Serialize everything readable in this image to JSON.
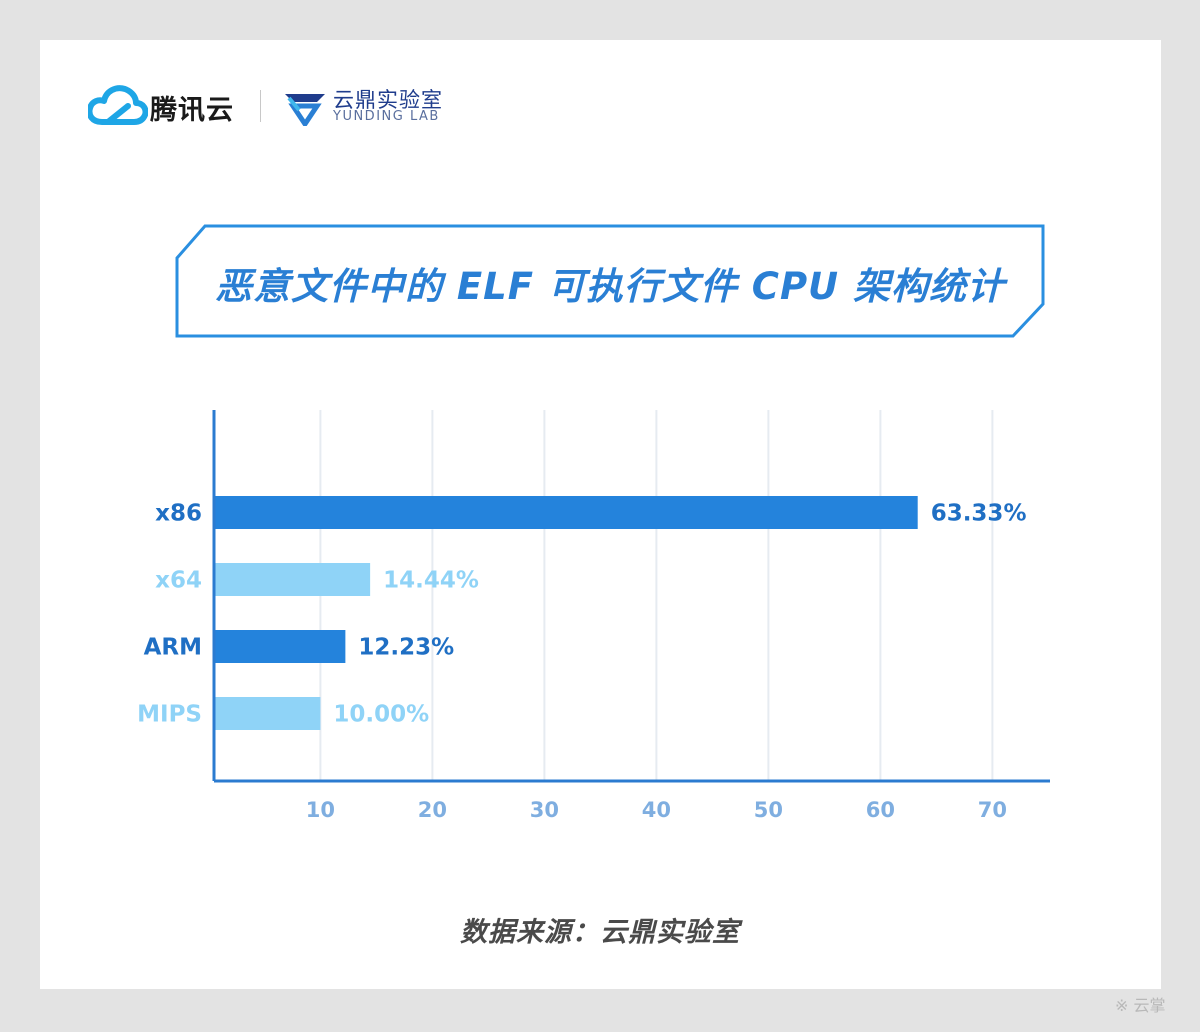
{
  "header": {
    "brand_name": "腾讯云",
    "lab_name_cn": "云鼎实验室",
    "lab_name_en": "YUNDING LAB"
  },
  "source_text": "数据来源：云鼎实验室",
  "watermark": "※ 云掌",
  "colors": {
    "dark_bar": "#2483dc",
    "light_bar": "#8fd3f7",
    "dark_label": "#1f6fc4",
    "light_label": "#8fd3f7",
    "axis": "#2b7bd0",
    "grid": "#e6ebf1"
  },
  "chart_data": {
    "type": "bar",
    "orientation": "horizontal",
    "title": "恶意文件中的 ELF 可执行文件 CPU 架构统计",
    "xlabel": "",
    "ylabel": "",
    "categories": [
      "x86",
      "x64",
      "ARM",
      "MIPS"
    ],
    "values": [
      63.33,
      14.44,
      12.23,
      10.0
    ],
    "value_labels": [
      "63.33%",
      "14.44%",
      "12.23%",
      "10.00%"
    ],
    "styles": [
      "dark",
      "light",
      "dark",
      "light"
    ],
    "xlim": [
      0.5,
      75
    ],
    "xticks": [
      10,
      20,
      30,
      40,
      50,
      60,
      70
    ],
    "grid": true
  }
}
